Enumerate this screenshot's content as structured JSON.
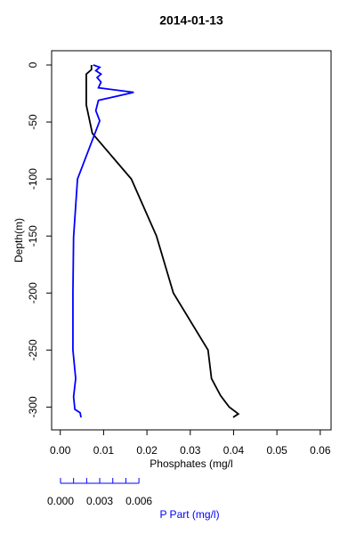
{
  "chart_data": {
    "type": "line",
    "title": "2014-01-13",
    "xlabel": "Phosphates (mg/l",
    "ylabel": "Depth(m)",
    "x2label": "P Part (mg/l)",
    "xlim": [
      -0.002,
      0.0625
    ],
    "xticks": [
      {
        "value": 0,
        "label": "0.00"
      },
      0.01,
      0.02,
      0.03,
      0.04,
      0.05,
      0.06
    ],
    "x2lim": [
      -0.00068,
      0.0207
    ],
    "x2ticks": [
      {
        "value": 0,
        "label": "0.000"
      },
      {
        "value": 0.003,
        "label": "0.003"
      },
      {
        "value": 0.006,
        "label": "0.006"
      }
    ],
    "x2minor_ticks": [
      0.001,
      0.002,
      0.004,
      0.005
    ],
    "ylim": [
      -320,
      12.5
    ],
    "yticks": [
      0,
      -50,
      -100,
      -150,
      -200,
      -250,
      -300
    ],
    "series": [
      {
        "color": "#000000",
        "axis": "x",
        "x": [
          0.0072,
          0.0072,
          0.006,
          0.006,
          0.0074,
          0.0164,
          0.0222,
          0.0261,
          0.0341,
          0.0349,
          0.037,
          0.039,
          0.0411,
          0.0399
        ],
        "y": [
          0,
          -4,
          -8,
          -35,
          -60,
          -100,
          -150,
          -200,
          -250,
          -275,
          -290,
          -300,
          -306,
          -309
        ]
      },
      {
        "color": "#0000ff",
        "axis": "x2",
        "x": [
          0.0025,
          0.003,
          0.0027,
          0.0031,
          0.0028,
          0.0031,
          0.0029,
          0.0056,
          0.0029,
          0.0027,
          0.003,
          0.0013,
          0.001,
          0.00095,
          0.00095,
          0.00116,
          0.001,
          0.0011,
          0.0015,
          0.00157
        ],
        "y": [
          0,
          -2,
          -5,
          -8,
          -11,
          -15,
          -20,
          -24,
          -31,
          -40,
          -49,
          -100,
          -151,
          -200,
          -250,
          -275,
          -291,
          -302,
          -305,
          -309
        ]
      }
    ]
  }
}
